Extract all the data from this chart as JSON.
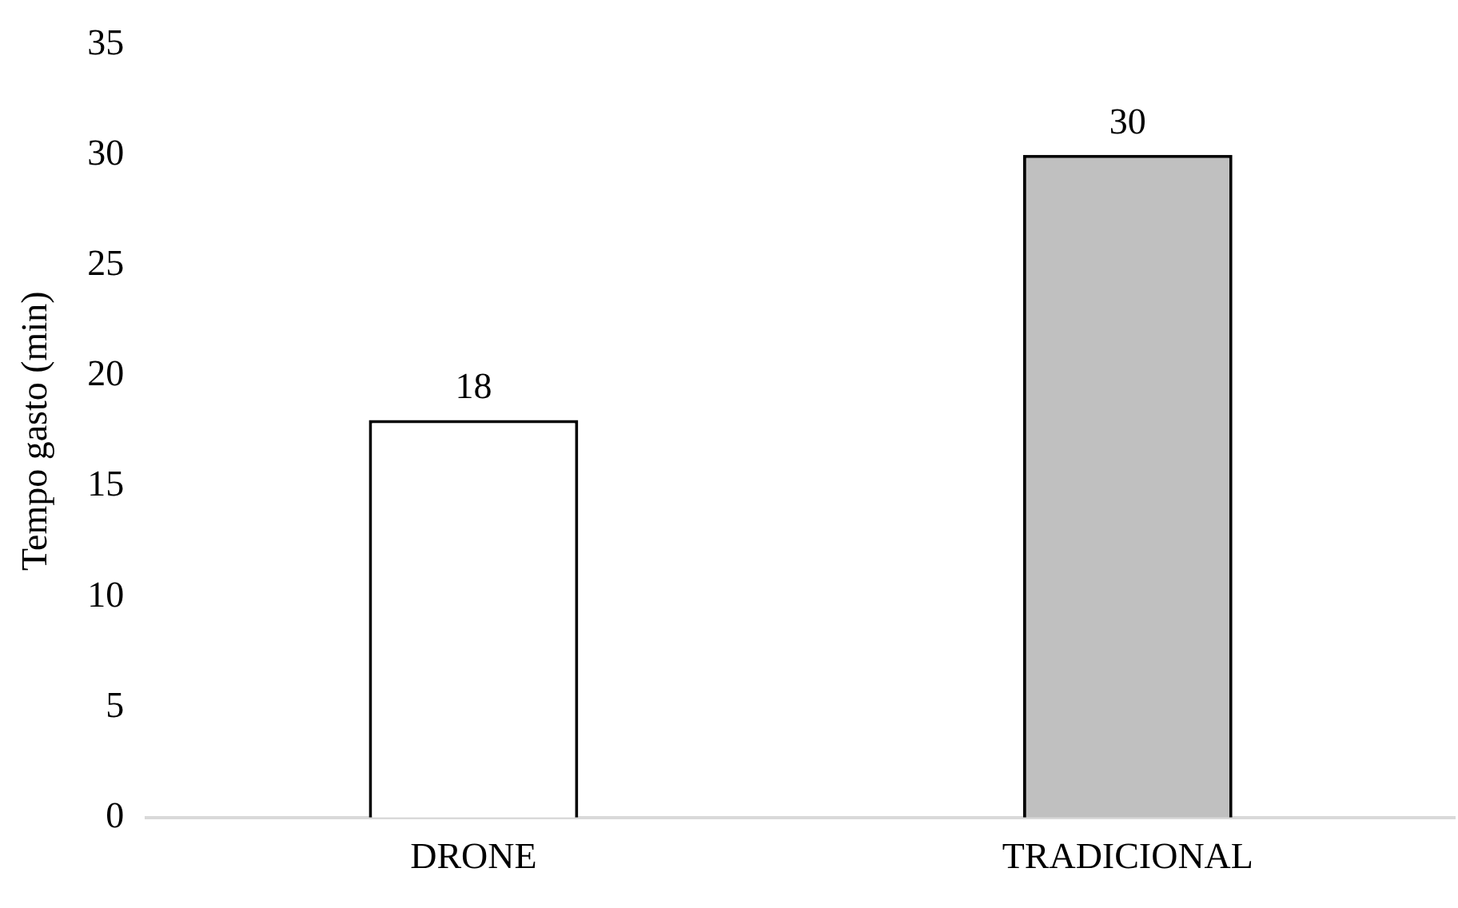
{
  "chart_data": {
    "type": "bar",
    "ylabel": "Tempo gasto (min)",
    "categories": [
      "DRONE",
      "TRADICIONAL"
    ],
    "values": [
      18,
      30
    ],
    "colors": [
      "#ffffff",
      "#c0c0c0"
    ],
    "ylim": [
      0,
      35
    ],
    "yticks": [
      0,
      5,
      10,
      15,
      20,
      25,
      30,
      35
    ],
    "grid": false,
    "legend": false,
    "data_labels": true
  }
}
